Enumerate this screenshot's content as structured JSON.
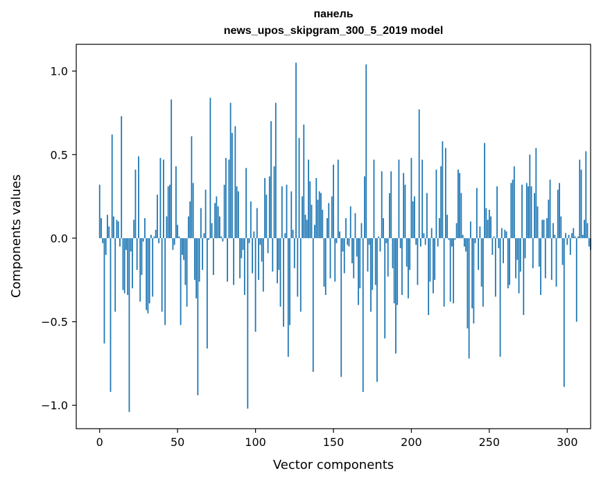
{
  "chart_data": {
    "type": "bar",
    "title_lines": [
      "панель",
      "news_upos_skipgram_300_5_2019 model"
    ],
    "xlabel": "Vector components",
    "ylabel": "Components values",
    "xlim": [
      -15,
      315
    ],
    "ylim": [
      -1.14,
      1.16
    ],
    "xticks": [
      0,
      50,
      100,
      150,
      200,
      250,
      300
    ],
    "xtick_labels": [
      "0",
      "50",
      "100",
      "150",
      "200",
      "250",
      "300"
    ],
    "yticks": [
      -1.0,
      -0.5,
      0.0,
      0.5,
      1.0
    ],
    "ytick_labels": [
      "−1.0",
      "−0.5",
      "0.0",
      "0.5",
      "1.0"
    ],
    "grid": false,
    "bar_color": "#1f77b4",
    "values": [
      0.32,
      0.12,
      -0.03,
      -0.63,
      -0.1,
      0.14,
      0.07,
      -0.92,
      0.62,
      0.13,
      -0.44,
      0.11,
      0.1,
      -0.05,
      0.73,
      -0.31,
      -0.33,
      -0.07,
      -0.34,
      -1.04,
      -0.08,
      -0.3,
      0.11,
      0.41,
      -0.19,
      0.49,
      -0.38,
      -0.22,
      -0.02,
      0.12,
      -0.43,
      -0.45,
      -0.39,
      0.02,
      -0.35,
      0.01,
      0.05,
      0.26,
      -0.03,
      0.48,
      -0.44,
      0.47,
      -0.52,
      0.13,
      0.31,
      0.32,
      0.83,
      -0.07,
      -0.04,
      0.43,
      0.08,
      0.01,
      -0.52,
      -0.1,
      -0.13,
      -0.28,
      -0.41,
      0.13,
      0.22,
      0.61,
      0.33,
      -0.25,
      -0.36,
      -0.94,
      -0.26,
      0.18,
      -0.19,
      0.03,
      0.29,
      -0.66,
      -0.01,
      0.84,
      0.09,
      -0.22,
      0.21,
      0.25,
      0.19,
      0.13,
      0.01,
      -0.02,
      0.32,
      0.48,
      -0.26,
      0.47,
      0.81,
      0.63,
      -0.28,
      0.67,
      0.31,
      0.28,
      -0.24,
      -0.12,
      -0.07,
      -0.34,
      0.42,
      -1.02,
      -0.03,
      0.22,
      -0.21,
      0.04,
      -0.56,
      0.18,
      -0.25,
      -0.04,
      -0.14,
      -0.32,
      0.36,
      0.26,
      -0.09,
      0.37,
      0.7,
      -0.2,
      0.43,
      0.81,
      -0.27,
      -0.19,
      -0.41,
      0.31,
      -0.53,
      0.03,
      0.32,
      -0.71,
      -0.52,
      0.28,
      0.05,
      -0.18,
      1.05,
      -0.35,
      0.6,
      -0.44,
      0.25,
      0.68,
      0.14,
      0.11,
      0.47,
      0.34,
      0.2,
      -0.8,
      0.08,
      0.36,
      0.23,
      0.28,
      0.27,
      0.17,
      -0.29,
      -0.34,
      0.12,
      0.21,
      -0.24,
      0.25,
      0.44,
      -0.26,
      -0.03,
      0.47,
      0.04,
      -0.83,
      -0.08,
      -0.21,
      0.12,
      -0.04,
      -0.05,
      0.19,
      -0.15,
      -0.24,
      0.15,
      -0.11,
      -0.4,
      -0.3,
      0.09,
      -0.92,
      0.37,
      1.04,
      -0.2,
      -0.04,
      -0.44,
      -0.31,
      0.47,
      -0.28,
      -0.86,
      0.01,
      -0.08,
      0.4,
      0.12,
      -0.6,
      -0.03,
      -0.23,
      0.27,
      0.4,
      -0.18,
      -0.39,
      -0.69,
      -0.4,
      0.47,
      -0.06,
      -0.34,
      0.39,
      0.32,
      -0.17,
      -0.36,
      -0.19,
      0.48,
      0.22,
      0.25,
      -0.04,
      -0.28,
      0.77,
      -0.05,
      0.47,
      0.03,
      -0.04,
      0.27,
      -0.46,
      -0.26,
      0.06,
      -0.33,
      -0.25,
      0.41,
      -0.05,
      0.12,
      0.43,
      0.58,
      -0.41,
      0.54,
      0.14,
      -0.01,
      -0.38,
      -0.05,
      -0.39,
      -0.01,
      0.09,
      0.41,
      0.39,
      0.27,
      0.02,
      -0.05,
      -0.08,
      -0.54,
      -0.72,
      0.1,
      -0.42,
      -0.51,
      -0.03,
      0.3,
      -0.19,
      0.07,
      -0.29,
      -0.41,
      0.57,
      0.18,
      0.11,
      0.17,
      0.13,
      -0.1,
      0.01,
      -0.35,
      0.31,
      -0.06,
      -0.71,
      0.06,
      -0.15,
      0.05,
      0.04,
      -0.3,
      -0.28,
      0.33,
      0.35,
      0.43,
      -0.24,
      -0.13,
      -0.33,
      -0.2,
      0.32,
      -0.46,
      -0.12,
      0.33,
      0.31,
      0.5,
      0.31,
      -0.18,
      0.27,
      0.54,
      0.19,
      -0.17,
      -0.34,
      0.11,
      0.11,
      -0.24,
      0.12,
      0.23,
      0.35,
      -0.25,
      0.09,
      0.02,
      -0.29,
      0.29,
      0.33,
      0.13,
      -0.16,
      -0.89,
      0.03,
      -0.04,
      0.02,
      -0.1,
      0.03,
      0.06,
      0.01,
      -0.5,
      0.01,
      0.47,
      0.41,
      0.02,
      0.11,
      0.52,
      0.09,
      -0.05,
      -0.07
    ]
  }
}
